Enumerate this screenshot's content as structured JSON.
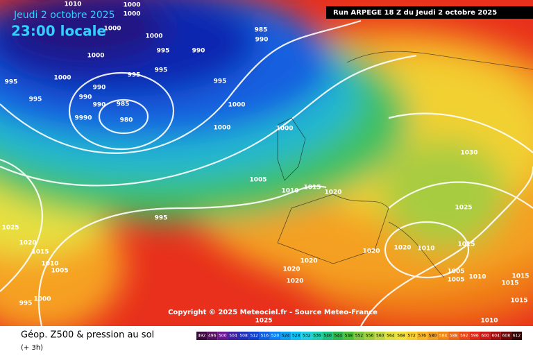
{
  "header": {
    "date": "Jeudi 2 octobre 2025",
    "time": "23:00 locale",
    "run": "Run ARPEGE 18 Z du Jeudi 2 octobre 2025"
  },
  "isobar_labels": [
    "1010",
    "1000",
    "1000",
    "1000",
    "1000",
    "985",
    "990",
    "995",
    "990",
    "1000",
    "1000",
    "995",
    "995",
    "995",
    "990",
    "990",
    "990",
    "985",
    "980",
    "995",
    "9990",
    "995",
    "1000",
    "1000",
    "1000",
    "1005",
    "1010",
    "1015",
    "1020",
    "1030",
    "1025",
    "995",
    "1025",
    "1020",
    "1015",
    "1010",
    "1005",
    "995",
    "1000",
    "1020",
    "1020",
    "1010",
    "1015",
    "1020",
    "1020",
    "1020",
    "1005",
    "1005",
    "1010",
    "1015",
    "1015",
    "1015",
    "1010",
    "1025"
  ],
  "copyright": "Copyright © 2025 Meteociel.fr - Source Meteo-France",
  "footer": {
    "title": "Géop. Z500 & pression au sol",
    "step": "(+ 3h)"
  },
  "scale": {
    "values": [
      492,
      496,
      500,
      504,
      508,
      512,
      516,
      520,
      524,
      528,
      532,
      536,
      540,
      544,
      548,
      552,
      556,
      560,
      564,
      568,
      572,
      576,
      580,
      584,
      588,
      592,
      596,
      600,
      604,
      608,
      612
    ]
  }
}
